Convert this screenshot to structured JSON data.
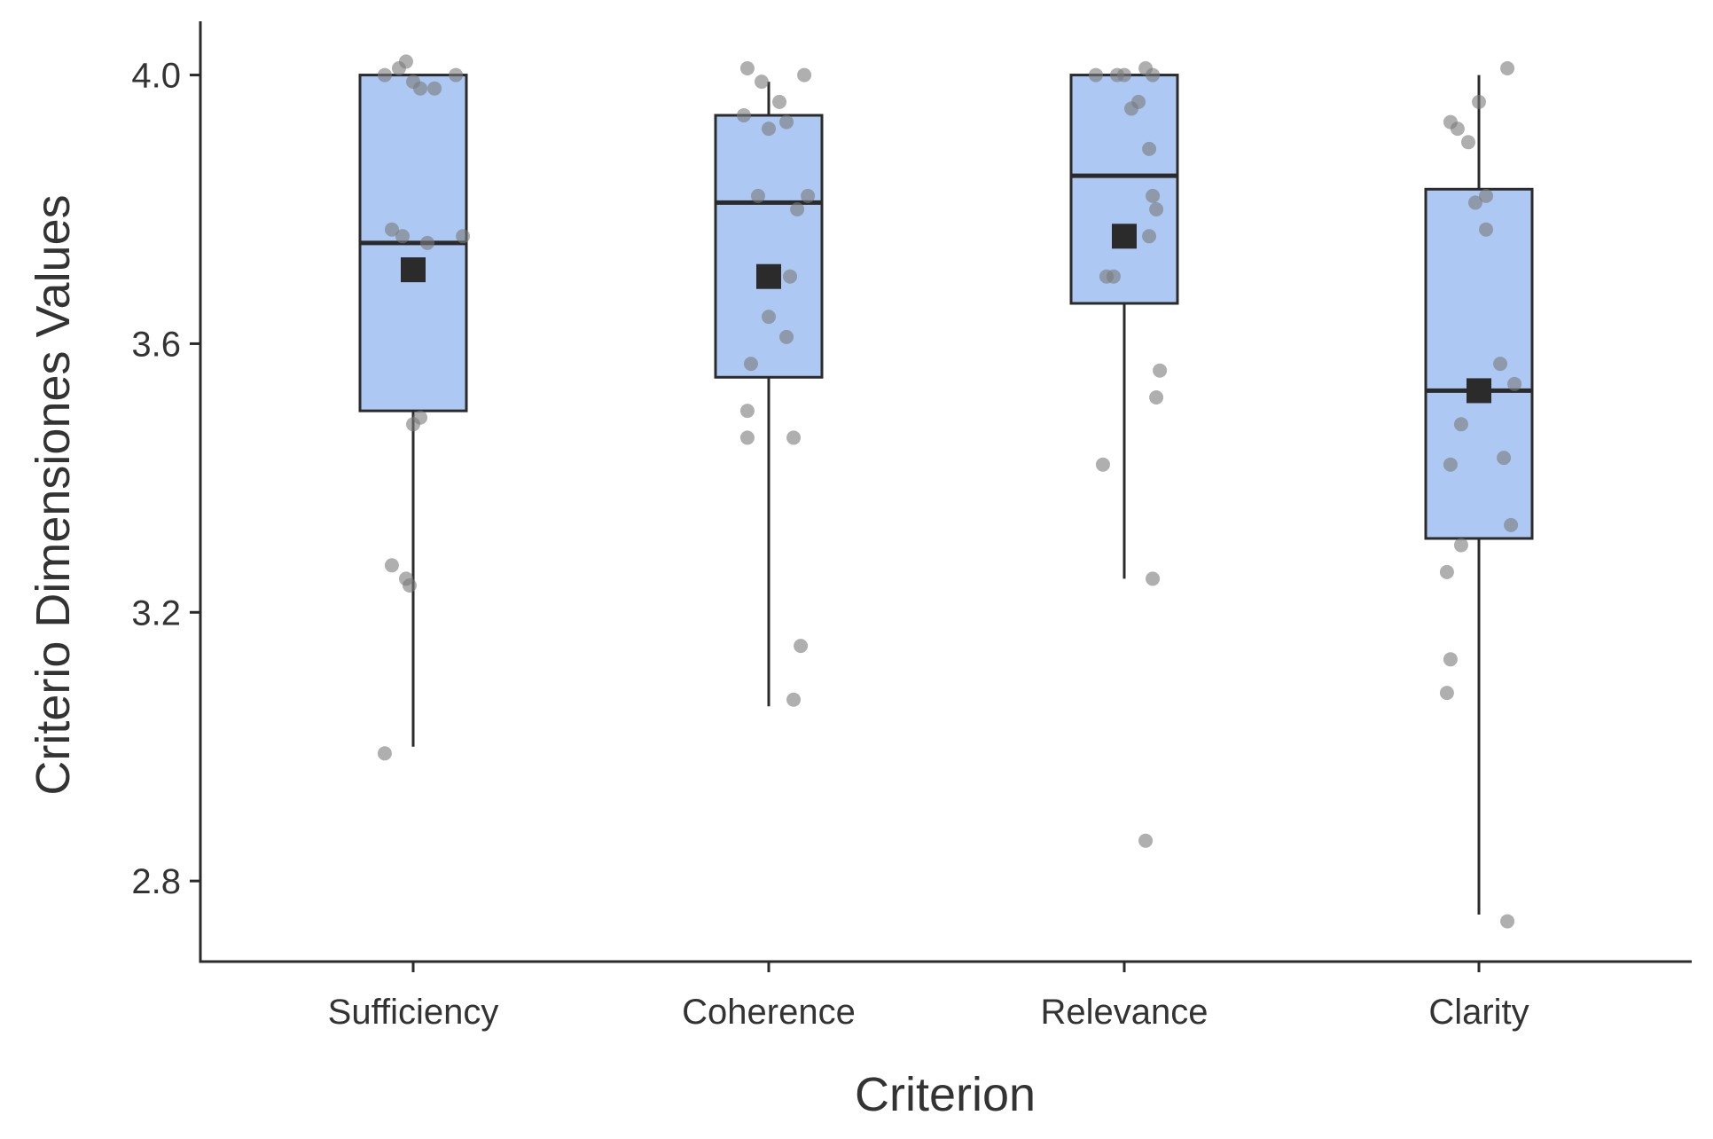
{
  "colors": {
    "box_fill": "#adc8f2",
    "box_stroke": "#2b2b2b",
    "point": "#7a7a7a",
    "mean_marker": "#2b2b2b",
    "axis": "#2b2b2b",
    "text": "#333333"
  },
  "chart_data": {
    "type": "box",
    "title": "",
    "xlabel": "Criterion",
    "ylabel": "Criterio Dimensiones Values",
    "ylim": [
      2.68,
      4.08
    ],
    "yticks": [
      2.8,
      3.2,
      3.6,
      4.0
    ],
    "ytick_labels": [
      "2.8",
      "3.2",
      "3.6",
      "4.0"
    ],
    "grid": false,
    "legend": "none",
    "categories": [
      "Sufficiency",
      "Coherence",
      "Relevance",
      "Clarity"
    ],
    "boxes": [
      {
        "category": "Sufficiency",
        "whisker_low": 3.0,
        "q1": 3.5,
        "median": 3.75,
        "q3": 4.0,
        "whisker_high": 4.0,
        "mean": 3.71,
        "points": [
          {
            "offset": -0.08,
            "y": 4.0
          },
          {
            "offset": -0.04,
            "y": 4.01
          },
          {
            "offset": -0.02,
            "y": 4.02
          },
          {
            "offset": 0.0,
            "y": 3.99
          },
          {
            "offset": 0.02,
            "y": 3.98
          },
          {
            "offset": 0.06,
            "y": 3.98
          },
          {
            "offset": 0.12,
            "y": 4.0
          },
          {
            "offset": -0.06,
            "y": 3.77
          },
          {
            "offset": -0.03,
            "y": 3.76
          },
          {
            "offset": 0.04,
            "y": 3.75
          },
          {
            "offset": 0.14,
            "y": 3.76
          },
          {
            "offset": 0.02,
            "y": 3.49
          },
          {
            "offset": 0.0,
            "y": 3.48
          },
          {
            "offset": -0.06,
            "y": 3.27
          },
          {
            "offset": -0.02,
            "y": 3.25
          },
          {
            "offset": -0.01,
            "y": 3.24
          },
          {
            "offset": -0.08,
            "y": 2.99
          }
        ]
      },
      {
        "category": "Coherence",
        "whisker_low": 3.06,
        "q1": 3.55,
        "median": 3.81,
        "q3": 3.94,
        "whisker_high": 3.99,
        "mean": 3.7,
        "points": [
          {
            "offset": -0.06,
            "y": 4.01
          },
          {
            "offset": -0.02,
            "y": 3.99
          },
          {
            "offset": 0.1,
            "y": 4.0
          },
          {
            "offset": 0.03,
            "y": 3.96
          },
          {
            "offset": -0.07,
            "y": 3.94
          },
          {
            "offset": 0.05,
            "y": 3.93
          },
          {
            "offset": 0.0,
            "y": 3.92
          },
          {
            "offset": -0.03,
            "y": 3.82
          },
          {
            "offset": 0.11,
            "y": 3.82
          },
          {
            "offset": 0.08,
            "y": 3.8
          },
          {
            "offset": 0.06,
            "y": 3.7
          },
          {
            "offset": 0.0,
            "y": 3.64
          },
          {
            "offset": 0.05,
            "y": 3.61
          },
          {
            "offset": -0.05,
            "y": 3.57
          },
          {
            "offset": -0.06,
            "y": 3.5
          },
          {
            "offset": -0.06,
            "y": 3.46
          },
          {
            "offset": 0.07,
            "y": 3.46
          },
          {
            "offset": 0.09,
            "y": 3.15
          },
          {
            "offset": 0.07,
            "y": 3.07
          }
        ]
      },
      {
        "category": "Relevance",
        "whisker_low": 3.25,
        "q1": 3.66,
        "median": 3.85,
        "q3": 4.0,
        "whisker_high": 4.0,
        "mean": 3.76,
        "points": [
          {
            "offset": -0.08,
            "y": 4.0
          },
          {
            "offset": -0.02,
            "y": 4.0
          },
          {
            "offset": 0.0,
            "y": 4.0
          },
          {
            "offset": 0.06,
            "y": 4.01
          },
          {
            "offset": 0.08,
            "y": 4.0
          },
          {
            "offset": 0.04,
            "y": 3.96
          },
          {
            "offset": 0.02,
            "y": 3.95
          },
          {
            "offset": 0.07,
            "y": 3.89
          },
          {
            "offset": 0.08,
            "y": 3.82
          },
          {
            "offset": 0.09,
            "y": 3.8
          },
          {
            "offset": 0.07,
            "y": 3.76
          },
          {
            "offset": -0.05,
            "y": 3.7
          },
          {
            "offset": -0.03,
            "y": 3.7
          },
          {
            "offset": 0.1,
            "y": 3.56
          },
          {
            "offset": 0.09,
            "y": 3.52
          },
          {
            "offset": -0.06,
            "y": 3.42
          },
          {
            "offset": 0.08,
            "y": 3.25
          },
          {
            "offset": 0.06,
            "y": 2.86
          }
        ]
      },
      {
        "category": "Clarity",
        "whisker_low": 2.75,
        "q1": 3.31,
        "median": 3.53,
        "q3": 3.83,
        "whisker_high": 4.0,
        "mean": 3.53,
        "points": [
          {
            "offset": 0.08,
            "y": 4.01
          },
          {
            "offset": 0.0,
            "y": 3.96
          },
          {
            "offset": -0.08,
            "y": 3.93
          },
          {
            "offset": -0.06,
            "y": 3.92
          },
          {
            "offset": -0.03,
            "y": 3.9
          },
          {
            "offset": 0.02,
            "y": 3.82
          },
          {
            "offset": -0.01,
            "y": 3.81
          },
          {
            "offset": 0.02,
            "y": 3.77
          },
          {
            "offset": 0.06,
            "y": 3.57
          },
          {
            "offset": 0.1,
            "y": 3.54
          },
          {
            "offset": -0.05,
            "y": 3.48
          },
          {
            "offset": -0.08,
            "y": 3.42
          },
          {
            "offset": 0.07,
            "y": 3.43
          },
          {
            "offset": 0.09,
            "y": 3.33
          },
          {
            "offset": -0.05,
            "y": 3.3
          },
          {
            "offset": -0.09,
            "y": 3.26
          },
          {
            "offset": -0.08,
            "y": 3.13
          },
          {
            "offset": -0.09,
            "y": 3.08
          },
          {
            "offset": 0.08,
            "y": 2.74
          }
        ]
      }
    ]
  }
}
